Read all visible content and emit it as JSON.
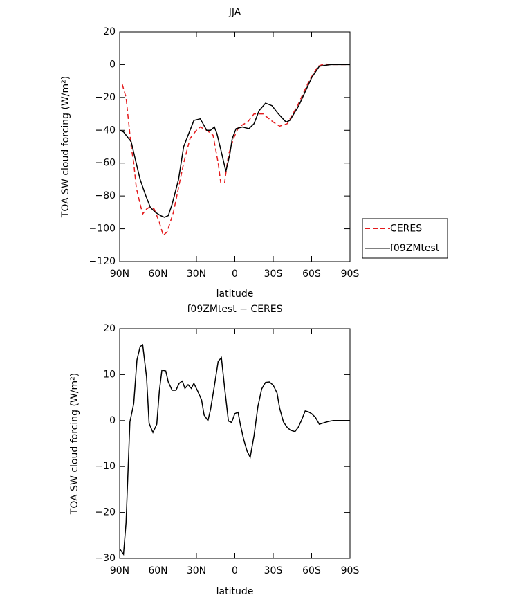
{
  "chart_data": [
    {
      "type": "line",
      "title": "JJA",
      "xlabel": "latitude",
      "ylabel": "TOA SW cloud forcing (W/m²)",
      "xlim": [
        90,
        -90
      ],
      "xticks": [
        {
          "value": 90,
          "label": "90N"
        },
        {
          "value": 60,
          "label": "60N"
        },
        {
          "value": 30,
          "label": "30N"
        },
        0,
        {
          "value": -30,
          "label": "30S"
        },
        {
          "value": -60,
          "label": "60S"
        },
        {
          "value": -90,
          "label": "90S"
        }
      ],
      "ylim": [
        -120,
        20
      ],
      "yticks": [
        20,
        0,
        {
          "value": -20,
          "label": "−20"
        },
        {
          "value": -40,
          "label": "−40"
        },
        {
          "value": -60,
          "label": "−60"
        },
        {
          "value": -80,
          "label": "−80"
        },
        {
          "value": -100,
          "label": "−100"
        },
        {
          "value": -120,
          "label": "−120"
        }
      ],
      "series": [
        {
          "name": "CERES",
          "color": "#e41a1c",
          "dashed": true,
          "x": [
            88,
            85,
            83,
            81,
            79,
            77,
            74,
            72,
            69,
            67,
            63,
            59,
            56,
            53,
            48,
            44,
            40,
            35,
            30,
            27,
            22,
            17,
            13,
            11,
            8,
            5,
            1,
            -3,
            -10,
            -15,
            -22,
            -30,
            -35,
            -41,
            -49,
            -58,
            -65,
            -70,
            -75,
            -90
          ],
          "values": [
            -12,
            -20,
            -35,
            -50,
            -60,
            -75,
            -85,
            -91,
            -88,
            -87,
            -88,
            -96,
            -104,
            -102,
            -90,
            -75,
            -60,
            -45,
            -40,
            -38,
            -40,
            -43,
            -60,
            -72,
            -72,
            -55,
            -45,
            -38,
            -35,
            -30,
            -30,
            -35,
            -37.5,
            -36,
            -25,
            -10,
            -1,
            0.5,
            0,
            0
          ]
        },
        {
          "name": "f09ZMtest",
          "color": "#000000",
          "dashed": false,
          "x": [
            90,
            87,
            84,
            81,
            78,
            74,
            70,
            66,
            62,
            58,
            55,
            52,
            49,
            44,
            40,
            32,
            27,
            22,
            19,
            16,
            14,
            10,
            7,
            4,
            2,
            -1,
            -6,
            -11,
            -15,
            -19,
            -24,
            -29,
            -34,
            -40,
            -43,
            -50,
            -60,
            -66,
            -70,
            -75,
            -90
          ],
          "values": [
            -40,
            -41,
            -44,
            -47,
            -57,
            -70,
            -79,
            -87,
            -90,
            -92,
            -93,
            -92,
            -85,
            -70,
            -50,
            -34,
            -33,
            -40,
            -40,
            -38,
            -42,
            -55,
            -65,
            -55,
            -45,
            -39,
            -38,
            -39,
            -36,
            -28,
            -23.5,
            -25,
            -30,
            -35,
            -34,
            -25,
            -8,
            -1,
            -0.5,
            0,
            0
          ]
        }
      ]
    },
    {
      "type": "line",
      "title": "f09ZMtest − CERES",
      "xlabel": "latitude",
      "ylabel": "TOA SW cloud forcing (W/m²)",
      "xlim": [
        90,
        -90
      ],
      "xticks": [
        {
          "value": 90,
          "label": "90N"
        },
        {
          "value": 60,
          "label": "60N"
        },
        {
          "value": 30,
          "label": "30N"
        },
        0,
        {
          "value": -30,
          "label": "30S"
        },
        {
          "value": -60,
          "label": "60S"
        },
        {
          "value": -90,
          "label": "90S"
        }
      ],
      "ylim": [
        -30,
        20
      ],
      "yticks": [
        20,
        10,
        0,
        {
          "value": -10,
          "label": "−10"
        },
        {
          "value": -20,
          "label": "−20"
        },
        {
          "value": -30,
          "label": "−30"
        }
      ],
      "series": [
        {
          "color": "#000000",
          "dashed": false,
          "x": [
            90,
            87,
            85,
            82,
            79,
            76.5,
            74,
            72,
            69,
            67,
            64,
            61,
            59,
            57,
            54,
            52,
            49,
            46,
            43.5,
            41,
            39,
            36.5,
            34,
            32,
            29,
            26,
            24,
            21,
            19,
            16,
            13,
            10.5,
            8,
            5,
            2.5,
            0,
            -2.5,
            -4.5,
            -7,
            -9.5,
            -12,
            -15,
            -18,
            -21,
            -24,
            -27,
            -30,
            -33,
            -35,
            -38,
            -41,
            -43.5,
            -47,
            -49.5,
            -52,
            -55,
            -57.5,
            -60,
            -63,
            -66,
            -69.5,
            -73,
            -77,
            -90
          ],
          "values": [
            -27.9,
            -29.1,
            -22.2,
            -0.3,
            3.7,
            13.2,
            16.1,
            16.5,
            9.5,
            -0.6,
            -2.6,
            -0.8,
            6.4,
            11,
            10.8,
            8.4,
            6.6,
            6.6,
            8.1,
            8.6,
            7,
            7.8,
            7,
            8.1,
            6.4,
            4.5,
            1.2,
            0,
            2.4,
            7.5,
            12.9,
            13.7,
            7.2,
            -0.1,
            -0.4,
            1.5,
            1.8,
            -1.1,
            -4.2,
            -6.6,
            -8,
            -3.3,
            3,
            6.9,
            8.3,
            8.4,
            7.7,
            6,
            2.7,
            -0.3,
            -1.5,
            -2.1,
            -2.4,
            -1.5,
            0,
            2.1,
            1.9,
            1.5,
            0.7,
            -0.8,
            -0.5,
            -0.2,
            0,
            0
          ]
        }
      ]
    }
  ]
}
